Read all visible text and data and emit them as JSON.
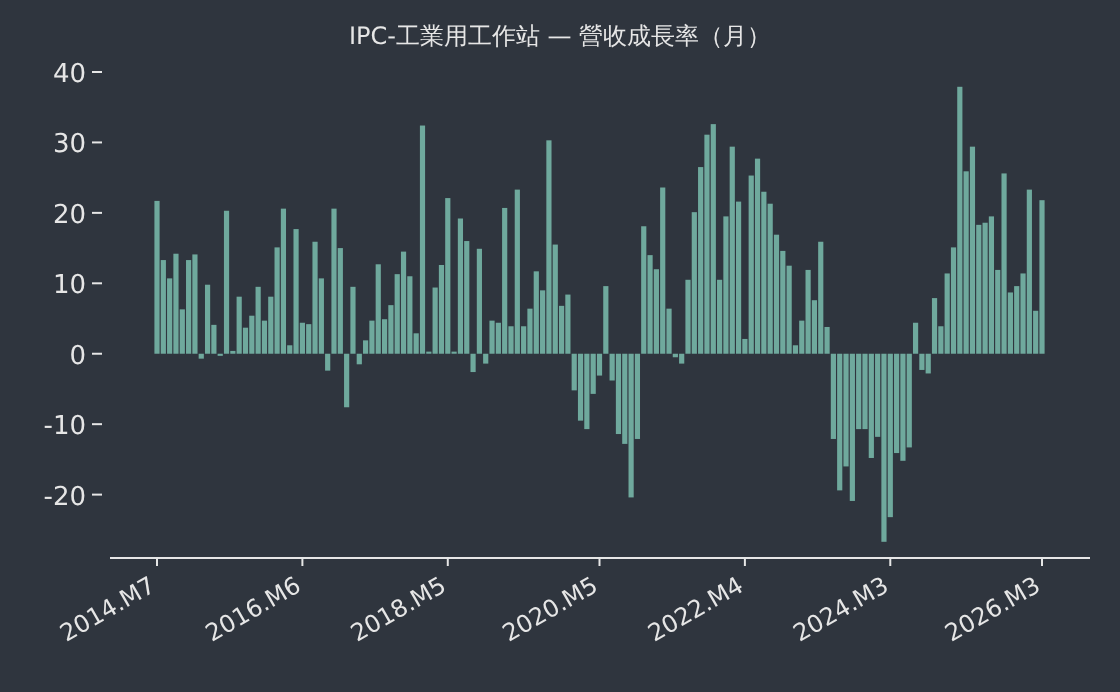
{
  "chart_data": {
    "type": "bar",
    "title": "IPC-工業用工作站 — 營收成長率（月）",
    "color": "#6fa99d",
    "categories": [
      "2014.M7",
      null,
      null,
      null,
      null,
      null,
      null,
      null,
      null,
      null,
      null,
      null,
      null,
      null,
      null,
      null,
      null,
      null,
      null,
      null,
      null,
      null,
      null,
      "2016.M6",
      null,
      null,
      null,
      null,
      null,
      null,
      null,
      null,
      null,
      null,
      null,
      null,
      null,
      null,
      null,
      null,
      null,
      null,
      null,
      null,
      null,
      null,
      "2018.M5",
      null,
      null,
      null,
      null,
      null,
      null,
      null,
      null,
      null,
      null,
      null,
      null,
      null,
      null,
      null,
      null,
      null,
      null,
      null,
      null,
      null,
      null,
      null,
      "2020.M5",
      null,
      null,
      null,
      null,
      null,
      null,
      null,
      null,
      null,
      null,
      null,
      null,
      null,
      null,
      null,
      null,
      null,
      null,
      null,
      null,
      null,
      null,
      "2022.M4",
      null,
      null,
      null,
      null,
      null,
      null,
      null,
      null,
      null,
      null,
      null,
      null,
      null,
      null,
      null,
      null,
      null,
      null,
      null,
      null,
      null,
      null,
      "2024.M3",
      null,
      null,
      null,
      null,
      null,
      null,
      null,
      null,
      null,
      null,
      null,
      null,
      null,
      null,
      null,
      null,
      null,
      null,
      null,
      null,
      null,
      null,
      null,
      "2026.M3"
    ],
    "values": [
      21.7,
      13.3,
      10.7,
      14.2,
      6.3,
      13.3,
      14.1,
      -0.7,
      9.8,
      4.1,
      -0.3,
      20.3,
      0.4,
      8.1,
      3.7,
      5.4,
      9.5,
      4.7,
      8.1,
      15.1,
      20.6,
      1.2,
      17.7,
      4.4,
      4.2,
      15.9,
      10.7,
      -2.4,
      20.6,
      15.0,
      -7.6,
      9.5,
      -1.5,
      1.9,
      4.7,
      12.7,
      4.9,
      6.9,
      11.3,
      14.5,
      11.0,
      2.9,
      32.4,
      0.3,
      9.4,
      12.6,
      22.1,
      0.3,
      19.2,
      16.0,
      -2.6,
      14.9,
      -1.4,
      4.7,
      4.4,
      20.7,
      3.9,
      23.3,
      3.9,
      6.4,
      11.7,
      9.0,
      30.3,
      15.5,
      6.8,
      8.4,
      -5.2,
      -9.5,
      -10.7,
      -5.7,
      -3.1,
      9.6,
      -3.8,
      -11.4,
      -12.8,
      -20.4,
      -12.1,
      18.1,
      14.0,
      12.0,
      23.6,
      6.4,
      -0.5,
      -1.4,
      10.5,
      20.1,
      26.5,
      31.1,
      32.6,
      10.5,
      19.5,
      29.4,
      21.6,
      2.1,
      25.3,
      27.7,
      23.0,
      21.3,
      16.9,
      14.6,
      12.5,
      1.2,
      4.7,
      11.9,
      7.6,
      15.9,
      3.8,
      -12.1,
      -19.4,
      -16.0,
      -20.9,
      -10.7,
      -10.7,
      -14.8,
      -11.8,
      -26.7,
      -23.2,
      -14.1,
      -15.2,
      -13.3,
      4.4,
      -2.3,
      -2.8,
      7.9,
      3.9,
      11.4,
      15.1,
      37.9,
      25.9,
      29.4,
      18.3,
      18.6,
      19.5,
      11.9,
      25.6,
      8.7,
      9.6,
      11.4,
      23.3,
      6.1,
      21.8
    ],
    "ylim": [
      -29,
      40
    ],
    "yticks": [
      -20,
      -10,
      0,
      10,
      20,
      30,
      40
    ],
    "grid": false
  }
}
